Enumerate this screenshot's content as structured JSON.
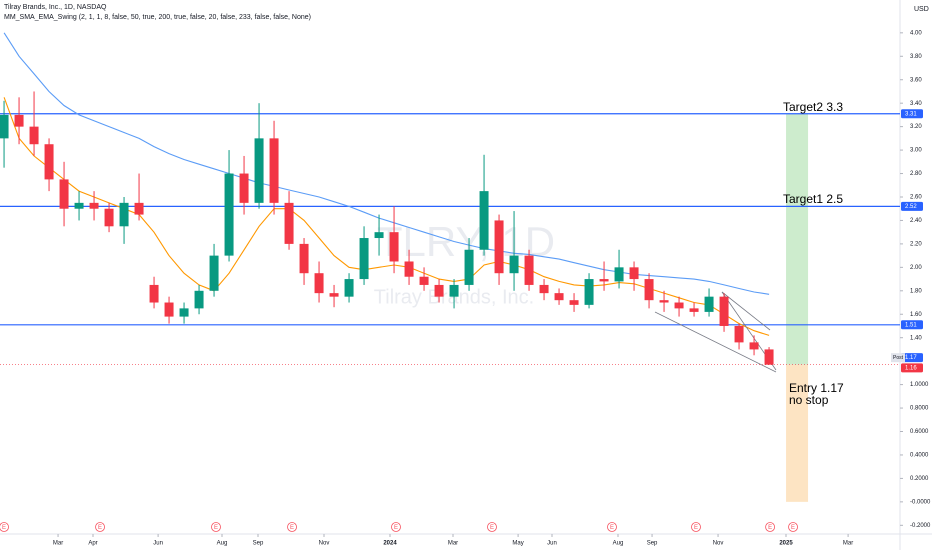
{
  "chart_data": {
    "type": "candlestick",
    "title": "Tilray Brands, Inc., 1D, NASDAQ",
    "indicator": "MM_SMA_EMA_Swing (2, 1, 1, 8, false, 50, true, 200, true, false, 20, false, 233, false, false, None)",
    "currency": "USD",
    "watermark": "TLRY, 1D",
    "watermark_name": "Tilray Brands, Inc.",
    "ylim": [
      -0.24,
      4.28
    ],
    "yticks": [
      {
        "value": 4,
        "label": "4.00"
      },
      {
        "value": 3.8,
        "label": "3.80"
      },
      {
        "value": 3.6,
        "label": "3.60"
      },
      {
        "value": 3.4,
        "label": "3.40"
      },
      {
        "value": 3.2,
        "label": "3.20"
      },
      {
        "value": 3,
        "label": "3.00"
      },
      {
        "value": 2.8,
        "label": "2.80"
      },
      {
        "value": 2.6,
        "label": "2.60"
      },
      {
        "value": 2.4,
        "label": "2.40"
      },
      {
        "value": 2.2,
        "label": "2.20"
      },
      {
        "value": 2,
        "label": "2.00"
      },
      {
        "value": 1.8,
        "label": "1.80"
      },
      {
        "value": 1.6,
        "label": "1.60"
      },
      {
        "value": 1.4,
        "label": "1.40"
      },
      {
        "value": 1,
        "label": "1.0000"
      },
      {
        "value": 0.8,
        "label": "0.8000"
      },
      {
        "value": 0.6,
        "label": "0.6000"
      },
      {
        "value": 0.4,
        "label": "0.4000"
      },
      {
        "value": 0.2,
        "label": "0.2000"
      },
      {
        "value": 0,
        "label": "-0.0000"
      },
      {
        "value": -0.2,
        "label": "-0.2000"
      }
    ],
    "xlim": [
      -0.27,
      59.73
    ],
    "xticks": [
      {
        "value": 3.6,
        "label": "Mar"
      },
      {
        "value": 5.93,
        "label": "Apr"
      },
      {
        "value": 10.27,
        "label": "Jun"
      },
      {
        "value": 14.53,
        "label": "Aug"
      },
      {
        "value": 16.93,
        "label": "Sep"
      },
      {
        "value": 21.33,
        "label": "Nov"
      },
      {
        "value": 25.73,
        "label": "2024"
      },
      {
        "value": 29.93,
        "label": "Mar"
      },
      {
        "value": 34.27,
        "label": "May"
      },
      {
        "value": 36.53,
        "label": "Jun"
      },
      {
        "value": 40.93,
        "label": "Aug"
      },
      {
        "value": 43.2,
        "label": "Sep"
      },
      {
        "value": 47.6,
        "label": "Nov"
      },
      {
        "value": 52.13,
        "label": "2025"
      },
      {
        "value": 56.27,
        "label": "Mar"
      }
    ],
    "up_color": "#089981",
    "down_color": "#f23645",
    "candles": [
      {
        "open": 3.1,
        "high": 3.42,
        "low": 2.85,
        "close": 3.3
      },
      {
        "open": 3.3,
        "high": 3.45,
        "low": 3.05,
        "close": 3.2
      },
      {
        "open": 3.2,
        "high": 3.5,
        "low": 2.95,
        "close": 3.05
      },
      {
        "open": 3.05,
        "high": 3.1,
        "low": 2.65,
        "close": 2.75
      },
      {
        "open": 2.75,
        "high": 2.9,
        "low": 2.35,
        "close": 2.5
      },
      {
        "open": 2.5,
        "high": 2.65,
        "low": 2.4,
        "close": 2.55
      },
      {
        "open": 2.55,
        "high": 2.65,
        "low": 2.4,
        "close": 2.5
      },
      {
        "open": 2.5,
        "high": 2.55,
        "low": 2.3,
        "close": 2.35
      },
      {
        "open": 2.35,
        "high": 2.6,
        "low": 2.2,
        "close": 2.55
      },
      {
        "open": 2.55,
        "high": 2.8,
        "low": 2.4,
        "close": 2.45
      },
      {
        "open": 1.85,
        "high": 1.92,
        "low": 1.65,
        "close": 1.7
      },
      {
        "open": 1.7,
        "high": 1.75,
        "low": 1.52,
        "close": 1.58
      },
      {
        "open": 1.58,
        "high": 1.7,
        "low": 1.52,
        "close": 1.65
      },
      {
        "open": 1.65,
        "high": 1.85,
        "low": 1.6,
        "close": 1.8
      },
      {
        "open": 1.8,
        "high": 2.2,
        "low": 1.75,
        "close": 2.1
      },
      {
        "open": 2.1,
        "high": 3.0,
        "low": 2.05,
        "close": 2.8
      },
      {
        "open": 2.8,
        "high": 2.95,
        "low": 2.45,
        "close": 2.55
      },
      {
        "open": 2.55,
        "high": 3.4,
        "low": 2.5,
        "close": 3.1
      },
      {
        "open": 3.1,
        "high": 3.25,
        "low": 2.45,
        "close": 2.55
      },
      {
        "open": 2.55,
        "high": 2.65,
        "low": 2.15,
        "close": 2.2
      },
      {
        "open": 2.2,
        "high": 2.25,
        "low": 1.85,
        "close": 1.95
      },
      {
        "open": 1.95,
        "high": 2.05,
        "low": 1.7,
        "close": 1.78
      },
      {
        "open": 1.78,
        "high": 1.85,
        "low": 1.66,
        "close": 1.75
      },
      {
        "open": 1.75,
        "high": 1.95,
        "low": 1.7,
        "close": 1.9
      },
      {
        "open": 1.9,
        "high": 2.35,
        "low": 1.85,
        "close": 2.25
      },
      {
        "open": 2.25,
        "high": 2.45,
        "low": 2.1,
        "close": 2.3
      },
      {
        "open": 2.3,
        "high": 2.52,
        "low": 1.95,
        "close": 2.05
      },
      {
        "open": 2.05,
        "high": 2.15,
        "low": 1.85,
        "close": 1.92
      },
      {
        "open": 1.92,
        "high": 2.0,
        "low": 1.8,
        "close": 1.85
      },
      {
        "open": 1.85,
        "high": 1.9,
        "low": 1.7,
        "close": 1.75
      },
      {
        "open": 1.75,
        "high": 1.9,
        "low": 1.65,
        "close": 1.85
      },
      {
        "open": 1.85,
        "high": 2.25,
        "low": 1.8,
        "close": 2.15
      },
      {
        "open": 2.15,
        "high": 2.96,
        "low": 2.1,
        "close": 2.65
      },
      {
        "open": 2.4,
        "high": 2.45,
        "low": 1.85,
        "close": 1.95
      },
      {
        "open": 1.95,
        "high": 2.48,
        "low": 1.8,
        "close": 2.1
      },
      {
        "open": 2.1,
        "high": 2.15,
        "low": 1.8,
        "close": 1.85
      },
      {
        "open": 1.85,
        "high": 1.9,
        "low": 1.72,
        "close": 1.78
      },
      {
        "open": 1.78,
        "high": 1.82,
        "low": 1.68,
        "close": 1.72
      },
      {
        "open": 1.72,
        "high": 1.78,
        "low": 1.62,
        "close": 1.68
      },
      {
        "open": 1.68,
        "high": 1.95,
        "low": 1.65,
        "close": 1.9
      },
      {
        "open": 1.9,
        "high": 2.05,
        "low": 1.8,
        "close": 1.88
      },
      {
        "open": 1.88,
        "high": 2.15,
        "low": 1.82,
        "close": 2.0
      },
      {
        "open": 2.0,
        "high": 2.05,
        "low": 1.8,
        "close": 1.9
      },
      {
        "open": 1.9,
        "high": 1.95,
        "low": 1.65,
        "close": 1.72
      },
      {
        "open": 1.72,
        "high": 1.8,
        "low": 1.62,
        "close": 1.7
      },
      {
        "open": 1.7,
        "high": 1.75,
        "low": 1.58,
        "close": 1.65
      },
      {
        "open": 1.65,
        "high": 1.7,
        "low": 1.58,
        "close": 1.62
      },
      {
        "open": 1.62,
        "high": 1.82,
        "low": 1.58,
        "close": 1.75
      },
      {
        "open": 1.75,
        "high": 1.78,
        "low": 1.45,
        "close": 1.5
      },
      {
        "open": 1.5,
        "high": 1.52,
        "low": 1.3,
        "close": 1.36
      },
      {
        "open": 1.36,
        "high": 1.42,
        "low": 1.25,
        "close": 1.3
      },
      {
        "open": 1.3,
        "high": 1.32,
        "low": 1.17,
        "close": 1.17
      }
    ],
    "ma_lines": [
      {
        "color": "#ff9800",
        "values": [
          3.45,
          3.1,
          2.95,
          2.85,
          2.75,
          2.65,
          2.6,
          2.55,
          2.5,
          2.45,
          2.3,
          2.1,
          1.95,
          1.85,
          1.8,
          1.95,
          2.15,
          2.35,
          2.5,
          2.5,
          2.4,
          2.25,
          2.1,
          2.0,
          1.98,
          2.0,
          2.02,
          2.0,
          1.95,
          1.9,
          1.88,
          1.9,
          2.02,
          2.05,
          2.02,
          1.98,
          1.92,
          1.88,
          1.85,
          1.84,
          1.85,
          1.87,
          1.86,
          1.82,
          1.78,
          1.74,
          1.7,
          1.68,
          1.6,
          1.52,
          1.46,
          1.42
        ]
      },
      {
        "color": "#5b9cf6",
        "values": [
          4.0,
          3.8,
          3.65,
          3.5,
          3.38,
          3.3,
          3.25,
          3.2,
          3.15,
          3.1,
          3.03,
          2.97,
          2.92,
          2.88,
          2.84,
          2.8,
          2.76,
          2.72,
          2.69,
          2.66,
          2.63,
          2.6,
          2.56,
          2.52,
          2.47,
          2.42,
          2.38,
          2.34,
          2.3,
          2.26,
          2.22,
          2.19,
          2.16,
          2.14,
          2.12,
          2.11,
          2.09,
          2.07,
          2.04,
          2.01,
          1.98,
          1.96,
          1.94,
          1.93,
          1.92,
          1.91,
          1.9,
          1.88,
          1.85,
          1.82,
          1.79,
          1.77
        ]
      }
    ],
    "levels": [
      {
        "value": 3.31,
        "label": "3.31"
      },
      {
        "value": 2.52,
        "label": "2.52"
      },
      {
        "value": 1.51,
        "label": "1.51"
      }
    ],
    "level_color": "#2962ff",
    "price_tags": [
      {
        "value": 1.17,
        "label": "1.17",
        "session": "Post",
        "color": "#2962ff"
      },
      {
        "value": 1.16,
        "label": "1.16",
        "color": "#f23645"
      }
    ],
    "position": {
      "entry": 1.17,
      "target": 3.31,
      "stop": 0,
      "target_color": "#cdeccd",
      "stop_color": "#fde4c3"
    },
    "annotations": {
      "target2": "Target2 3.3",
      "target1": "Target1 2.5",
      "entry": "Entry 1.17",
      "stop": "no stop"
    },
    "events": [
      {
        "x": 0,
        "label": "E"
      },
      {
        "x": 6.4,
        "label": "E"
      },
      {
        "x": 14.13,
        "label": "E"
      },
      {
        "x": 19.2,
        "label": "E"
      },
      {
        "x": 26.13,
        "label": "E"
      },
      {
        "x": 32.53,
        "label": "E"
      },
      {
        "x": 40.53,
        "label": "E"
      },
      {
        "x": 46.13,
        "label": "E"
      },
      {
        "x": 51.07,
        "label": "E"
      },
      {
        "x": 52.6,
        "label": "E"
      }
    ]
  }
}
